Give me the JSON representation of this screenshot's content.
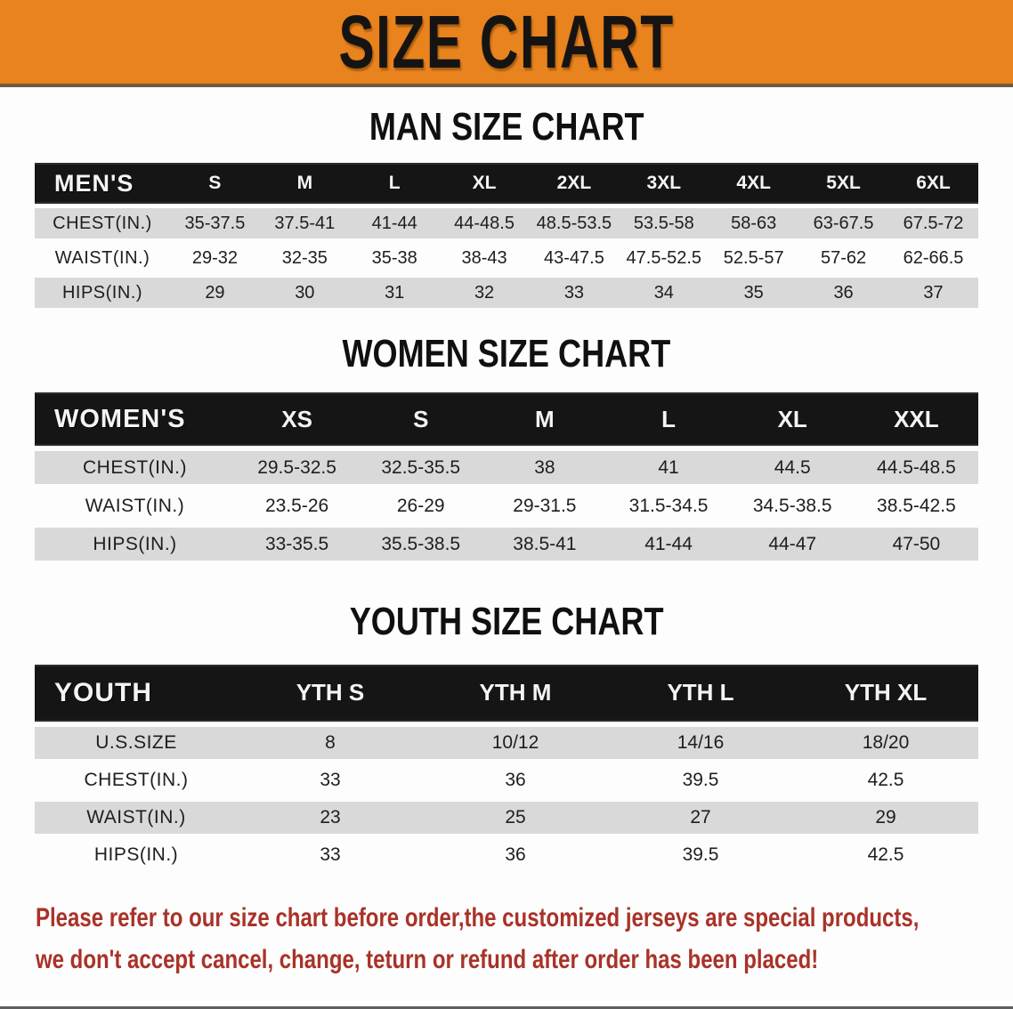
{
  "banner": {
    "title": "SIZE CHART",
    "bg_color": "#e8831e",
    "text_color": "#161413"
  },
  "sections": [
    {
      "heading": "MAN SIZE CHART",
      "table": {
        "group_label": "MEN'S",
        "columns": [
          "S",
          "M",
          "L",
          "XL",
          "2XL",
          "3XL",
          "4XL",
          "5XL",
          "6XL"
        ],
        "rows": [
          {
            "label": "CHEST(IN.)",
            "values": [
              "35-37.5",
              "37.5-41",
              "41-44",
              "44-48.5",
              "48.5-53.5",
              "53.5-58",
              "58-63",
              "63-67.5",
              "67.5-72"
            ]
          },
          {
            "label": "WAIST(IN.)",
            "values": [
              "29-32",
              "32-35",
              "35-38",
              "38-43",
              "43-47.5",
              "47.5-52.5",
              "52.5-57",
              "57-62",
              "62-66.5"
            ]
          },
          {
            "label": "HIPS(IN.)",
            "values": [
              "29",
              "30",
              "31",
              "32",
              "33",
              "34",
              "35",
              "36",
              "37"
            ]
          }
        ]
      }
    },
    {
      "heading": "WOMEN SIZE CHART",
      "table": {
        "group_label": "WOMEN'S",
        "columns": [
          "XS",
          "S",
          "M",
          "L",
          "XL",
          "XXL"
        ],
        "rows": [
          {
            "label": "CHEST(IN.)",
            "values": [
              "29.5-32.5",
              "32.5-35.5",
              "38",
              "41",
              "44.5",
              "44.5-48.5"
            ]
          },
          {
            "label": "WAIST(IN.)",
            "values": [
              "23.5-26",
              "26-29",
              "29-31.5",
              "31.5-34.5",
              "34.5-38.5",
              "38.5-42.5"
            ]
          },
          {
            "label": "HIPS(IN.)",
            "values": [
              "33-35.5",
              "35.5-38.5",
              "38.5-41",
              "41-44",
              "44-47",
              "47-50"
            ]
          }
        ]
      }
    },
    {
      "heading": "YOUTH SIZE CHART",
      "table": {
        "group_label": "YOUTH",
        "columns": [
          "YTH S",
          "YTH M",
          "YTH L",
          "YTH XL"
        ],
        "rows": [
          {
            "label": "U.S.SIZE",
            "values": [
              "8",
              "10/12",
              "14/16",
              "18/20"
            ]
          },
          {
            "label": "CHEST(IN.)",
            "values": [
              "33",
              "36",
              "39.5",
              "42.5"
            ]
          },
          {
            "label": "WAIST(IN.)",
            "values": [
              "23",
              "25",
              "27",
              "29"
            ]
          },
          {
            "label": "HIPS(IN.)",
            "values": [
              "33",
              "36",
              "39.5",
              "42.5"
            ]
          }
        ]
      }
    }
  ],
  "disclaimer": {
    "line1": "Please refer to our size chart before order,the customized jerseys are special products,",
    "line2": "we don't accept cancel, change, teturn or refund after order has been placed!",
    "color": "#a93228"
  }
}
